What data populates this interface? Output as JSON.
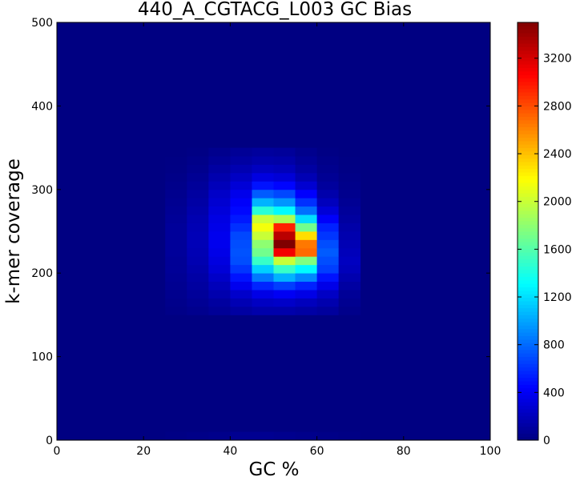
{
  "chart_data": {
    "type": "heatmap",
    "title": "440_A_CGTACG_L003 GC Bias",
    "xlabel": "GC %",
    "ylabel": "k-mer coverage",
    "xlim": [
      0,
      100
    ],
    "ylim": [
      0,
      500
    ],
    "x_ticks": [
      0,
      20,
      40,
      60,
      80,
      100
    ],
    "y_ticks": [
      0,
      100,
      200,
      300,
      400,
      500
    ],
    "colorbar": {
      "colormap": "jet",
      "range": [
        0,
        3500
      ],
      "ticks": [
        0,
        400,
        800,
        1200,
        1600,
        2000,
        2400,
        2800,
        3200
      ]
    },
    "background_value": 10,
    "bin_width_x": 5,
    "bin_height_y": 10,
    "bin_x_starts": [
      25,
      30,
      35,
      40,
      45,
      50,
      55,
      60,
      65
    ],
    "bin_y_starts": [
      0,
      150,
      160,
      170,
      180,
      190,
      200,
      210,
      220,
      230,
      240,
      250,
      260,
      270,
      280,
      290,
      300,
      310,
      320,
      330,
      340
    ],
    "values": [
      [
        20,
        30,
        40,
        60,
        60,
        50,
        40,
        30,
        20
      ],
      [
        30,
        50,
        80,
        120,
        150,
        150,
        130,
        100,
        40
      ],
      [
        40,
        70,
        110,
        180,
        230,
        250,
        210,
        160,
        60
      ],
      [
        50,
        90,
        160,
        260,
        350,
        400,
        350,
        240,
        80
      ],
      [
        60,
        110,
        200,
        380,
        560,
        650,
        550,
        360,
        120
      ],
      [
        70,
        130,
        250,
        500,
        850,
        1050,
        900,
        500,
        160
      ],
      [
        80,
        150,
        300,
        620,
        1150,
        1500,
        1300,
        650,
        200
      ],
      [
        80,
        170,
        330,
        700,
        1500,
        2000,
        1750,
        700,
        220
      ],
      [
        90,
        180,
        360,
        720,
        1700,
        3100,
        2700,
        750,
        200
      ],
      [
        90,
        190,
        380,
        700,
        1800,
        3500,
        2650,
        700,
        180
      ],
      [
        90,
        190,
        380,
        680,
        2000,
        3300,
        2300,
        620,
        160
      ],
      [
        90,
        180,
        360,
        600,
        2150,
        2950,
        1700,
        550,
        140
      ],
      [
        80,
        170,
        340,
        520,
        2000,
        1900,
        1200,
        420,
        110
      ],
      [
        70,
        150,
        310,
        460,
        1450,
        1300,
        820,
        300,
        90
      ],
      [
        60,
        130,
        280,
        420,
        1050,
        950,
        600,
        210,
        70
      ],
      [
        50,
        110,
        250,
        370,
        750,
        680,
        430,
        150,
        50
      ],
      [
        40,
        90,
        200,
        300,
        500,
        450,
        280,
        100,
        40
      ],
      [
        30,
        70,
        160,
        230,
        330,
        300,
        180,
        70,
        30
      ],
      [
        20,
        50,
        120,
        170,
        220,
        200,
        120,
        50,
        20
      ],
      [
        15,
        35,
        80,
        120,
        150,
        140,
        80,
        35,
        15
      ],
      [
        10,
        20,
        50,
        80,
        100,
        90,
        50,
        20,
        10
      ]
    ]
  }
}
